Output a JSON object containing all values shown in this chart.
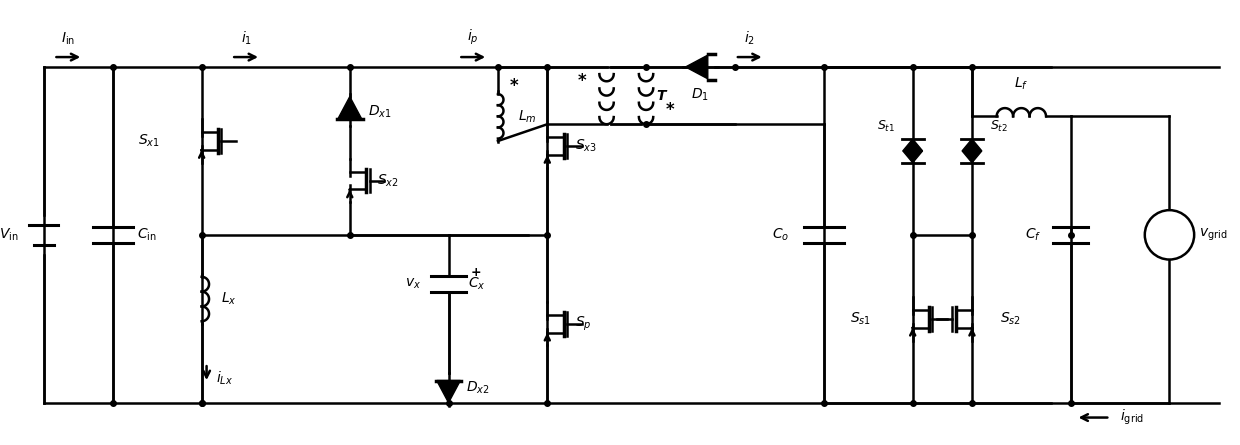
{
  "fig_width": 12.4,
  "fig_height": 4.45,
  "dpi": 100,
  "bg_color": "#ffffff",
  "line_color": "#000000",
  "line_width": 1.8,
  "dot_size": 5,
  "font_size": 11
}
